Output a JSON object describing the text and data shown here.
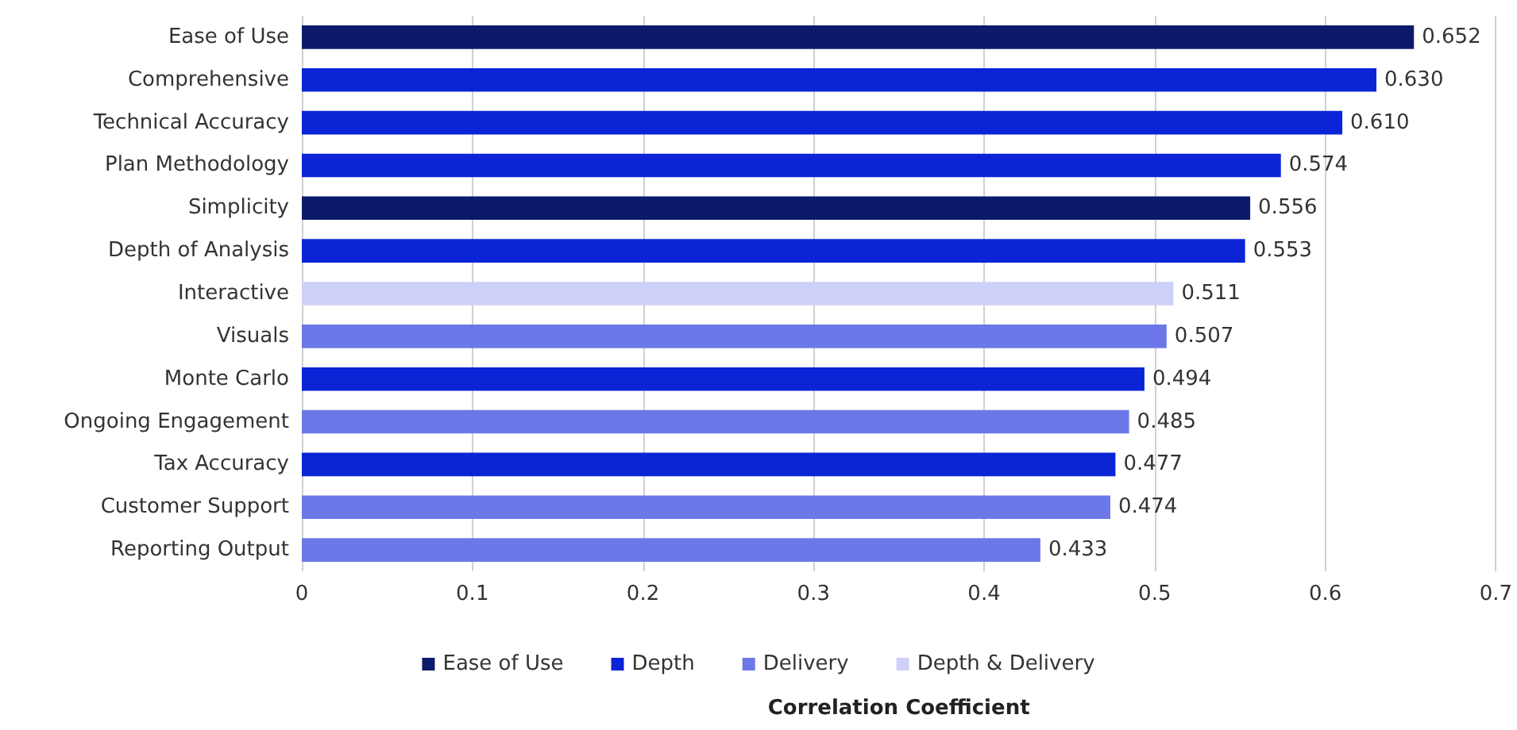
{
  "chart_data": {
    "type": "bar",
    "orientation": "horizontal",
    "stacked": true,
    "categories": [
      "Ease of Use",
      "Comprehensive",
      "Technical Accuracy",
      "Plan Methodology",
      "Simplicity",
      "Depth of Analysis",
      "Interactive",
      "Visuals",
      "Monte Carlo",
      "Ongoing Engagement",
      "Tax Accuracy",
      "Customer Support",
      "Reporting Output"
    ],
    "series": [
      {
        "name": "Ease of Use",
        "color": "#0c1a6b",
        "values": [
          0.652,
          null,
          null,
          null,
          0.556,
          null,
          null,
          null,
          null,
          null,
          null,
          null,
          null
        ],
        "value_labels": [
          "0.652",
          null,
          null,
          null,
          "0.556",
          null,
          null,
          null,
          null,
          null,
          null,
          null,
          null
        ]
      },
      {
        "name": "Depth",
        "color": "#0a24d6",
        "values": [
          null,
          0.63,
          0.61,
          0.574,
          null,
          0.553,
          null,
          null,
          0.494,
          null,
          0.477,
          null,
          null
        ],
        "value_labels": [
          null,
          "0.630",
          "0.610",
          "0.574",
          null,
          "0.553",
          null,
          null,
          "0.494",
          null,
          "0.477",
          null,
          null
        ]
      },
      {
        "name": "Delivery",
        "color": "#6c78e8",
        "values": [
          null,
          null,
          null,
          null,
          null,
          null,
          null,
          0.507,
          null,
          0.485,
          null,
          0.474,
          0.433
        ],
        "value_labels": [
          null,
          null,
          null,
          null,
          null,
          null,
          null,
          "0.507",
          null,
          "0.485",
          null,
          "0.474",
          "0.433"
        ]
      },
      {
        "name": "Depth & Delivery",
        "color": "#cdd1f7",
        "values": [
          null,
          null,
          null,
          null,
          null,
          null,
          0.511,
          null,
          null,
          null,
          null,
          null,
          null
        ],
        "value_labels": [
          null,
          null,
          null,
          null,
          null,
          null,
          "0.511",
          null,
          null,
          null,
          null,
          null,
          null
        ]
      }
    ],
    "xlim": [
      0,
      0.7
    ],
    "xticks": [
      0,
      0.1,
      0.2,
      0.3,
      0.4,
      0.5,
      0.6,
      0.7
    ],
    "xlabel": "Correlation Coefficient",
    "grid": "x",
    "legend": "bottom"
  }
}
